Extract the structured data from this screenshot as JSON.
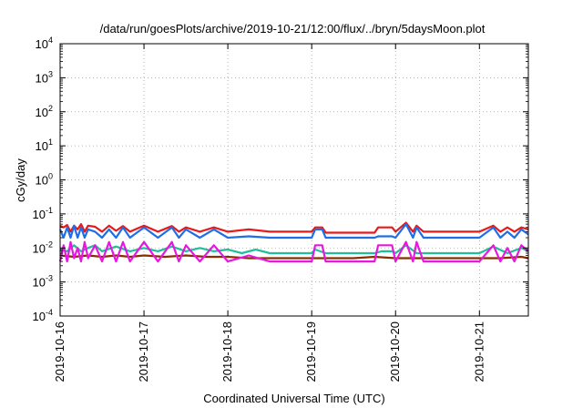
{
  "chart_data": {
    "type": "line",
    "title": "/data/run/goesPlots/archive/2019-10-21/12:00/flux/../bryn/5daysMoon.plot",
    "xlabel": "Coordinated Universal Time (UTC)",
    "ylabel": "cGy/day",
    "y_scale": "log",
    "ylim": [
      0.0001,
      10000
    ],
    "y_ticks": [
      {
        "value": 10000,
        "base": "10",
        "exp": "4"
      },
      {
        "value": 1000,
        "base": "10",
        "exp": "3"
      },
      {
        "value": 100,
        "base": "10",
        "exp": "2"
      },
      {
        "value": 10,
        "base": "10",
        "exp": "1"
      },
      {
        "value": 1,
        "base": "10",
        "exp": "0"
      },
      {
        "value": 0.1,
        "base": "10",
        "exp": "-1"
      },
      {
        "value": 0.01,
        "base": "10",
        "exp": "-2"
      },
      {
        "value": 0.001,
        "base": "10",
        "exp": "-3"
      },
      {
        "value": 0.0001,
        "base": "10",
        "exp": "-4"
      }
    ],
    "xlim": [
      "2019-10-16 00:00",
      "2019-10-21 14:00"
    ],
    "x_ticks": [
      "2019-10-16",
      "2019-10-17",
      "2019-10-18",
      "2019-10-19",
      "2019-10-20",
      "2019-10-21"
    ],
    "grid": true,
    "legend": "none",
    "series": [
      {
        "color": "#e8191b",
        "x": [
          "2019-10-16 00:00",
          "2019-10-16 01:00",
          "2019-10-16 02:00",
          "2019-10-16 03:00",
          "2019-10-16 04:00",
          "2019-10-16 05:00",
          "2019-10-16 06:00",
          "2019-10-16 07:00",
          "2019-10-16 08:00",
          "2019-10-16 10:00",
          "2019-10-16 12:00",
          "2019-10-16 14:00",
          "2019-10-16 16:00",
          "2019-10-16 18:00",
          "2019-10-16 20:00",
          "2019-10-17 00:00",
          "2019-10-17 04:00",
          "2019-10-17 08:00",
          "2019-10-17 10:00",
          "2019-10-17 12:00",
          "2019-10-17 16:00",
          "2019-10-17 20:00",
          "2019-10-18 00:00",
          "2019-10-18 06:00",
          "2019-10-18 12:00",
          "2019-10-18 18:00",
          "2019-10-19 00:00",
          "2019-10-19 01:00",
          "2019-10-19 03:00",
          "2019-10-19 04:00",
          "2019-10-19 12:00",
          "2019-10-19 18:00",
          "2019-10-19 19:00",
          "2019-10-19 23:00",
          "2019-10-20 00:00",
          "2019-10-20 03:00",
          "2019-10-20 05:00",
          "2019-10-20 06:00",
          "2019-10-20 08:00",
          "2019-10-20 12:00",
          "2019-10-20 16:00",
          "2019-10-20 20:00",
          "2019-10-21 00:00",
          "2019-10-21 04:00",
          "2019-10-21 06:00",
          "2019-10-21 08:00",
          "2019-10-21 10:00",
          "2019-10-21 12:00",
          "2019-10-21 14:00"
        ],
        "y": [
          0.045,
          0.04,
          0.047,
          0.03,
          0.045,
          0.035,
          0.05,
          0.03,
          0.045,
          0.042,
          0.03,
          0.045,
          0.032,
          0.044,
          0.03,
          0.045,
          0.03,
          0.044,
          0.03,
          0.04,
          0.03,
          0.04,
          0.03,
          0.035,
          0.03,
          0.03,
          0.03,
          0.04,
          0.04,
          0.028,
          0.028,
          0.028,
          0.04,
          0.04,
          0.03,
          0.055,
          0.03,
          0.045,
          0.03,
          0.03,
          0.03,
          0.03,
          0.03,
          0.045,
          0.03,
          0.04,
          0.03,
          0.04,
          0.035
        ]
      },
      {
        "color": "#1f6ee8",
        "x": [
          "2019-10-16 00:00",
          "2019-10-16 01:00",
          "2019-10-16 02:00",
          "2019-10-16 03:00",
          "2019-10-16 04:00",
          "2019-10-16 05:00",
          "2019-10-16 06:00",
          "2019-10-16 07:00",
          "2019-10-16 08:00",
          "2019-10-16 10:00",
          "2019-10-16 12:00",
          "2019-10-16 14:00",
          "2019-10-16 16:00",
          "2019-10-16 18:00",
          "2019-10-16 20:00",
          "2019-10-17 00:00",
          "2019-10-17 04:00",
          "2019-10-17 08:00",
          "2019-10-17 10:00",
          "2019-10-17 12:00",
          "2019-10-17 16:00",
          "2019-10-17 20:00",
          "2019-10-18 00:00",
          "2019-10-18 06:00",
          "2019-10-18 12:00",
          "2019-10-18 18:00",
          "2019-10-19 00:00",
          "2019-10-19 01:00",
          "2019-10-19 03:00",
          "2019-10-19 04:00",
          "2019-10-19 12:00",
          "2019-10-19 18:00",
          "2019-10-19 19:00",
          "2019-10-19 23:00",
          "2019-10-20 00:00",
          "2019-10-20 03:00",
          "2019-10-20 05:00",
          "2019-10-20 06:00",
          "2019-10-20 08:00",
          "2019-10-20 12:00",
          "2019-10-20 16:00",
          "2019-10-20 20:00",
          "2019-10-21 00:00",
          "2019-10-21 04:00",
          "2019-10-21 06:00",
          "2019-10-21 08:00",
          "2019-10-21 10:00",
          "2019-10-21 12:00",
          "2019-10-21 14:00"
        ],
        "y": [
          0.035,
          0.02,
          0.04,
          0.02,
          0.045,
          0.02,
          0.04,
          0.02,
          0.035,
          0.03,
          0.02,
          0.035,
          0.02,
          0.04,
          0.02,
          0.04,
          0.02,
          0.04,
          0.02,
          0.035,
          0.02,
          0.035,
          0.02,
          0.022,
          0.02,
          0.02,
          0.02,
          0.035,
          0.035,
          0.02,
          0.02,
          0.02,
          0.022,
          0.022,
          0.02,
          0.05,
          0.02,
          0.04,
          0.02,
          0.02,
          0.02,
          0.02,
          0.02,
          0.04,
          0.02,
          0.03,
          0.02,
          0.035,
          0.025
        ]
      },
      {
        "color": "#1fbf9a",
        "x": [
          "2019-10-16 00:00",
          "2019-10-16 02:00",
          "2019-10-16 04:00",
          "2019-10-16 06:00",
          "2019-10-16 08:00",
          "2019-10-16 10:00",
          "2019-10-16 12:00",
          "2019-10-16 16:00",
          "2019-10-16 20:00",
          "2019-10-17 00:00",
          "2019-10-17 04:00",
          "2019-10-17 08:00",
          "2019-10-17 12:00",
          "2019-10-17 16:00",
          "2019-10-17 20:00",
          "2019-10-18 00:00",
          "2019-10-18 04:00",
          "2019-10-18 08:00",
          "2019-10-18 12:00",
          "2019-10-18 18:00",
          "2019-10-19 00:00",
          "2019-10-19 01:00",
          "2019-10-19 04:00",
          "2019-10-19 12:00",
          "2019-10-19 18:00",
          "2019-10-19 20:00",
          "2019-10-19 23:00",
          "2019-10-20 00:00",
          "2019-10-20 03:00",
          "2019-10-20 06:00",
          "2019-10-20 12:00",
          "2019-10-20 18:00",
          "2019-10-21 00:00",
          "2019-10-21 04:00",
          "2019-10-21 08:00",
          "2019-10-21 12:00",
          "2019-10-21 14:00"
        ],
        "y": [
          0.009,
          0.008,
          0.012,
          0.008,
          0.01,
          0.012,
          0.008,
          0.011,
          0.008,
          0.01,
          0.008,
          0.011,
          0.008,
          0.01,
          0.008,
          0.009,
          0.007,
          0.009,
          0.007,
          0.007,
          0.007,
          0.009,
          0.007,
          0.007,
          0.007,
          0.008,
          0.008,
          0.007,
          0.012,
          0.007,
          0.007,
          0.007,
          0.007,
          0.011,
          0.007,
          0.01,
          0.008
        ]
      },
      {
        "color": "#8a2e00",
        "x": [
          "2019-10-16 00:00",
          "2019-10-16 04:00",
          "2019-10-16 08:00",
          "2019-10-16 12:00",
          "2019-10-16 16:00",
          "2019-10-16 20:00",
          "2019-10-17 00:00",
          "2019-10-17 06:00",
          "2019-10-17 12:00",
          "2019-10-17 18:00",
          "2019-10-18 00:00",
          "2019-10-18 06:00",
          "2019-10-18 12:00",
          "2019-10-18 18:00",
          "2019-10-19 00:00",
          "2019-10-19 06:00",
          "2019-10-19 12:00",
          "2019-10-19 18:00",
          "2019-10-20 00:00",
          "2019-10-20 06:00",
          "2019-10-20 12:00",
          "2019-10-20 18:00",
          "2019-10-21 00:00",
          "2019-10-21 06:00",
          "2019-10-21 12:00",
          "2019-10-21 14:00"
        ],
        "y": [
          0.006,
          0.0055,
          0.006,
          0.0055,
          0.006,
          0.0055,
          0.006,
          0.0055,
          0.006,
          0.0055,
          0.0055,
          0.005,
          0.005,
          0.005,
          0.005,
          0.005,
          0.005,
          0.0055,
          0.005,
          0.005,
          0.005,
          0.005,
          0.005,
          0.005,
          0.0055,
          0.005
        ]
      },
      {
        "color": "#e817e0",
        "x": [
          "2019-10-16 00:00",
          "2019-10-16 01:00",
          "2019-10-16 02:00",
          "2019-10-16 03:00",
          "2019-10-16 04:00",
          "2019-10-16 05:00",
          "2019-10-16 06:00",
          "2019-10-16 07:00",
          "2019-10-16 08:00",
          "2019-10-16 10:00",
          "2019-10-16 12:00",
          "2019-10-16 14:00",
          "2019-10-16 16:00",
          "2019-10-16 18:00",
          "2019-10-16 20:00",
          "2019-10-17 00:00",
          "2019-10-17 04:00",
          "2019-10-17 08:00",
          "2019-10-17 10:00",
          "2019-10-17 12:00",
          "2019-10-17 16:00",
          "2019-10-17 20:00",
          "2019-10-18 00:00",
          "2019-10-18 06:00",
          "2019-10-18 12:00",
          "2019-10-18 18:00",
          "2019-10-19 00:00",
          "2019-10-19 01:00",
          "2019-10-19 03:00",
          "2019-10-19 04:00",
          "2019-10-19 12:00",
          "2019-10-19 18:00",
          "2019-10-19 19:00",
          "2019-10-19 23:00",
          "2019-10-20 00:00",
          "2019-10-20 03:00",
          "2019-10-20 05:00",
          "2019-10-20 06:00",
          "2019-10-20 08:00",
          "2019-10-20 12:00",
          "2019-10-20 16:00",
          "2019-10-20 20:00",
          "2019-10-21 00:00",
          "2019-10-21 04:00",
          "2019-10-21 06:00",
          "2019-10-21 08:00",
          "2019-10-21 10:00",
          "2019-10-21 12:00",
          "2019-10-21 14:00"
        ],
        "y": [
          0.004,
          0.012,
          0.004,
          0.015,
          0.005,
          0.01,
          0.004,
          0.015,
          0.005,
          0.012,
          0.004,
          0.015,
          0.004,
          0.015,
          0.004,
          0.015,
          0.004,
          0.015,
          0.004,
          0.012,
          0.004,
          0.012,
          0.004,
          0.006,
          0.004,
          0.004,
          0.004,
          0.012,
          0.012,
          0.004,
          0.004,
          0.004,
          0.012,
          0.012,
          0.004,
          0.015,
          0.004,
          0.015,
          0.004,
          0.004,
          0.004,
          0.004,
          0.004,
          0.012,
          0.004,
          0.01,
          0.004,
          0.012,
          0.008
        ]
      }
    ]
  }
}
